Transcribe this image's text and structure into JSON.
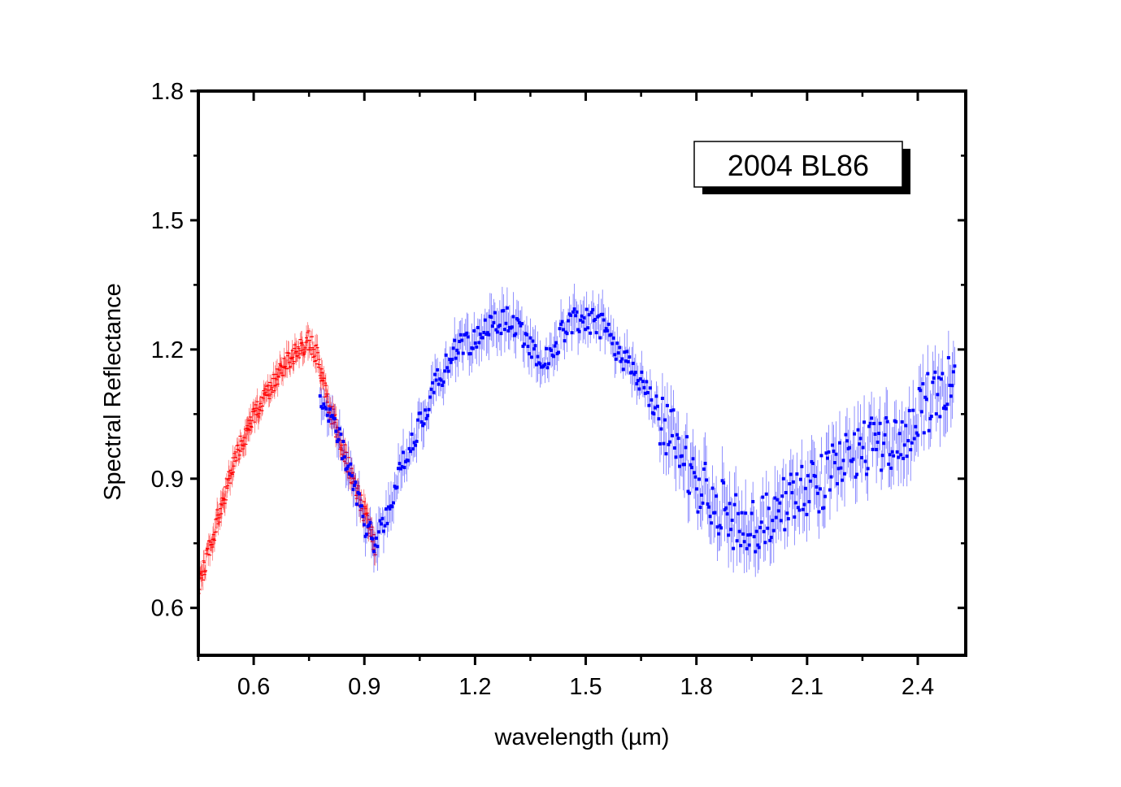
{
  "chart_data": {
    "type": "scatter",
    "title": "",
    "xlabel": "wavelength (µm)",
    "ylabel": "Spectral Reflectance",
    "xlim": [
      0.45,
      2.53
    ],
    "ylim": [
      0.49,
      1.8
    ],
    "x_ticks": [
      0.6,
      0.9,
      1.2,
      1.5,
      1.8,
      2.1,
      2.4
    ],
    "x_tick_labels": [
      "0.6",
      "0.9",
      "1.2",
      "1.5",
      "1.8",
      "2.1",
      "2.4"
    ],
    "y_ticks": [
      0.6,
      0.9,
      1.2,
      1.5,
      1.8
    ],
    "y_tick_labels": [
      "0.6",
      "0.9",
      "1.2",
      "1.5",
      "1.8"
    ],
    "grid": false,
    "annotation": {
      "text": "2004 BL86",
      "placement": "top-right"
    },
    "series": [
      {
        "color": "#ff0000",
        "marker": "cross-with-error-bars",
        "range": [
          0.45,
          0.93
        ],
        "error": 0.025,
        "trend": [
          [
            0.45,
            0.65
          ],
          [
            0.5,
            0.8
          ],
          [
            0.55,
            0.95
          ],
          [
            0.6,
            1.04
          ],
          [
            0.65,
            1.12
          ],
          [
            0.7,
            1.18
          ],
          [
            0.75,
            1.22
          ],
          [
            0.77,
            1.19
          ],
          [
            0.8,
            1.08
          ],
          [
            0.85,
            0.95
          ],
          [
            0.9,
            0.82
          ],
          [
            0.93,
            0.74
          ]
        ]
      },
      {
        "color": "#0000ff",
        "marker": "square-with-error-bars",
        "range": [
          0.78,
          2.5
        ],
        "error_range": [
          0.03,
          0.09
        ],
        "trend": [
          [
            0.78,
            1.1
          ],
          [
            0.85,
            0.95
          ],
          [
            0.9,
            0.8
          ],
          [
            0.93,
            0.75
          ],
          [
            0.97,
            0.83
          ],
          [
            1.0,
            0.92
          ],
          [
            1.05,
            1.03
          ],
          [
            1.1,
            1.13
          ],
          [
            1.15,
            1.2
          ],
          [
            1.2,
            1.22
          ],
          [
            1.25,
            1.26
          ],
          [
            1.3,
            1.27
          ],
          [
            1.35,
            1.2
          ],
          [
            1.4,
            1.17
          ],
          [
            1.45,
            1.26
          ],
          [
            1.5,
            1.27
          ],
          [
            1.55,
            1.25
          ],
          [
            1.6,
            1.18
          ],
          [
            1.65,
            1.12
          ],
          [
            1.7,
            1.05
          ],
          [
            1.75,
            0.98
          ],
          [
            1.8,
            0.88
          ],
          [
            1.85,
            0.85
          ],
          [
            1.9,
            0.8
          ],
          [
            1.95,
            0.78
          ],
          [
            2.0,
            0.82
          ],
          [
            2.05,
            0.85
          ],
          [
            2.1,
            0.87
          ],
          [
            2.15,
            0.9
          ],
          [
            2.2,
            0.95
          ],
          [
            2.25,
            0.98
          ],
          [
            2.3,
            0.98
          ],
          [
            2.35,
            1.0
          ],
          [
            2.4,
            1.05
          ],
          [
            2.45,
            1.1
          ],
          [
            2.5,
            1.13
          ]
        ]
      }
    ]
  }
}
